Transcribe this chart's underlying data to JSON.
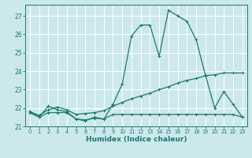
{
  "xlabel": "Humidex (Indice chaleur)",
  "bg_color": "#cce8ec",
  "grid_color": "#ffffff",
  "line_color": "#1a7a6e",
  "xlim": [
    -0.5,
    23.5
  ],
  "ylim": [
    21.0,
    27.6
  ],
  "yticks": [
    21,
    22,
    23,
    24,
    25,
    26,
    27
  ],
  "xticks": [
    0,
    1,
    2,
    3,
    4,
    5,
    6,
    7,
    8,
    9,
    10,
    11,
    12,
    13,
    14,
    15,
    16,
    17,
    18,
    19,
    20,
    21,
    22,
    23
  ],
  "line1_y": [
    21.8,
    21.5,
    22.1,
    21.9,
    21.8,
    21.4,
    21.3,
    21.5,
    21.4,
    22.2,
    23.3,
    25.9,
    26.5,
    26.5,
    24.8,
    27.3,
    27.0,
    26.7,
    25.7,
    23.8,
    22.0,
    22.9,
    22.2,
    21.5
  ],
  "line2_y": [
    21.75,
    21.5,
    21.75,
    21.75,
    21.75,
    21.4,
    21.35,
    21.45,
    21.4,
    21.65,
    21.65,
    21.65,
    21.65,
    21.65,
    21.65,
    21.65,
    21.65,
    21.65,
    21.65,
    21.65,
    21.65,
    21.65,
    21.65,
    21.5
  ],
  "line3_y": [
    21.8,
    21.6,
    21.9,
    22.05,
    21.9,
    21.65,
    21.7,
    21.75,
    21.85,
    22.1,
    22.3,
    22.5,
    22.65,
    22.8,
    23.0,
    23.15,
    23.35,
    23.5,
    23.6,
    23.75,
    23.8,
    23.9,
    23.9,
    23.9
  ]
}
